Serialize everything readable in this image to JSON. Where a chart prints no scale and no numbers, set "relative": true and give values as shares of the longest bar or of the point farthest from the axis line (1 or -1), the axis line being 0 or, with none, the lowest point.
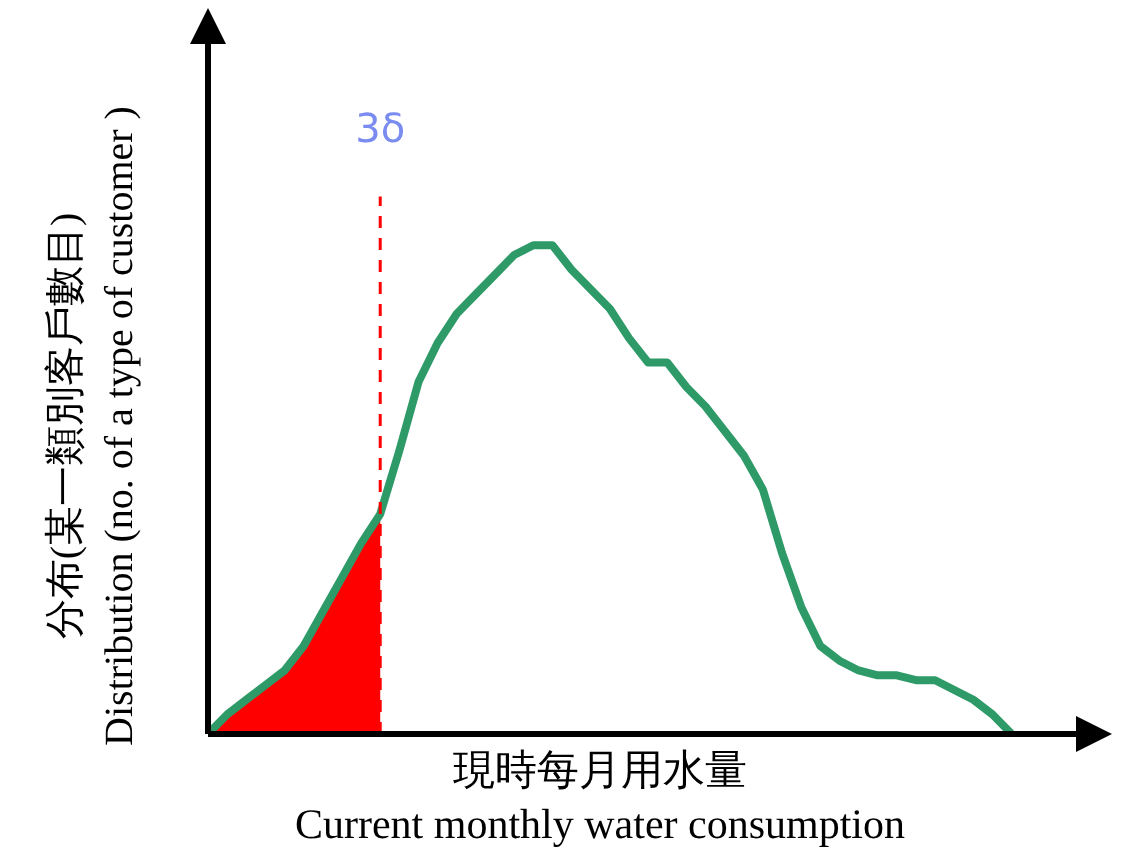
{
  "chart_data": {
    "type": "line",
    "relative": true,
    "xlabel": "現時每月用水量\nCurrent monthly water consumption",
    "ylabel": "分布(某一類別客戶數目)\nDistribution (no. of a type of customer )",
    "marker": "none",
    "annotations": [
      "3δ"
    ],
    "categories": [
      null,
      null,
      null,
      null,
      null,
      null,
      null,
      null,
      null,
      null,
      null,
      null,
      null,
      null,
      null,
      null,
      null,
      null,
      null,
      null,
      null,
      null,
      null,
      null,
      null,
      null,
      null,
      null,
      null,
      null,
      null,
      null,
      null,
      null,
      null,
      null,
      null,
      null,
      null,
      null,
      null,
      null,
      null
    ],
    "series": [
      {
        "color": "#2e9a68",
        "values": [
          0,
          0.04,
          0.07,
          0.1,
          0.13,
          0.18,
          0.25,
          0.32,
          0.39,
          0.45,
          0.58,
          0.72,
          0.8,
          0.86,
          0.9,
          0.94,
          0.98,
          1.0,
          1.0,
          0.95,
          0.91,
          0.87,
          0.81,
          0.76,
          0.76,
          0.71,
          0.67,
          0.62,
          0.57,
          0.5,
          0.37,
          0.26,
          0.18,
          0.15,
          0.13,
          0.12,
          0.12,
          0.11,
          0.11,
          0.09,
          0.07,
          0.04,
          0
        ]
      },
      {
        "type": "area",
        "color": "#ff0000",
        "line_style": "dashed",
        "values": [
          0,
          0.04,
          0.07,
          0.1,
          0.13,
          0.18,
          0.25,
          0.32,
          0.39,
          0.45,
          null,
          null,
          null,
          null,
          null,
          null,
          null,
          null,
          null,
          null,
          null,
          null,
          null,
          null,
          null,
          null,
          null,
          null,
          null,
          null,
          null,
          null,
          null,
          null,
          null,
          null,
          null,
          null,
          null,
          null,
          null,
          null,
          null
        ]
      }
    ]
  }
}
